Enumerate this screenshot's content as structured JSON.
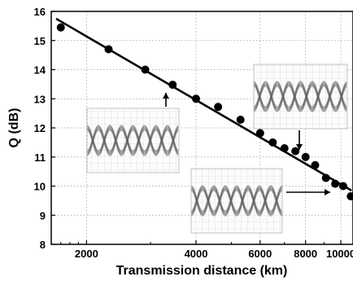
{
  "chart_data": {
    "type": "scatter",
    "title": "",
    "xlabel": "Transmission distance (km)",
    "ylabel": "Q (dB)",
    "x_scale": "log",
    "xlim": [
      1600,
      10800
    ],
    "ylim": [
      8,
      16
    ],
    "grid": true,
    "x_ticks": [
      2000,
      4000,
      6000,
      8000,
      10000
    ],
    "x_tick_labels": [
      "2000",
      "4000",
      "6000",
      "8000",
      "10000"
    ],
    "y_ticks": [
      8,
      9,
      10,
      11,
      12,
      13,
      14,
      15,
      16
    ],
    "y_tick_labels": [
      "8",
      "9",
      "10",
      "11",
      "12",
      "13",
      "14",
      "15",
      "16"
    ],
    "series": [
      {
        "type": "scatter",
        "x": [
          1700,
          2300,
          2900,
          3450,
          4000,
          4600,
          5300,
          6000,
          6500,
          7000,
          7500,
          8000,
          8500,
          9100,
          9650,
          10150,
          10650
        ],
        "y": [
          15.45,
          14.7,
          14.0,
          13.48,
          13.0,
          12.72,
          12.28,
          11.82,
          11.5,
          11.3,
          11.2,
          11.0,
          10.72,
          10.28,
          10.08,
          10.0,
          9.65
        ]
      },
      {
        "type": "line",
        "x": [
          1650,
          10700
        ],
        "y": [
          15.75,
          9.85
        ]
      }
    ],
    "annotations": [
      {
        "type": "arrow",
        "direction": "up",
        "x": 3450
      },
      {
        "type": "arrow",
        "direction": "down",
        "x": 8000
      },
      {
        "type": "arrow",
        "direction": "right",
        "x": 10300
      },
      {
        "type": "inset",
        "content": "eye-diagram",
        "near_x": 3450
      },
      {
        "type": "inset",
        "content": "eye-diagram",
        "near_x": 8000
      },
      {
        "type": "inset",
        "content": "eye-diagram",
        "near_x": 10300
      }
    ]
  }
}
